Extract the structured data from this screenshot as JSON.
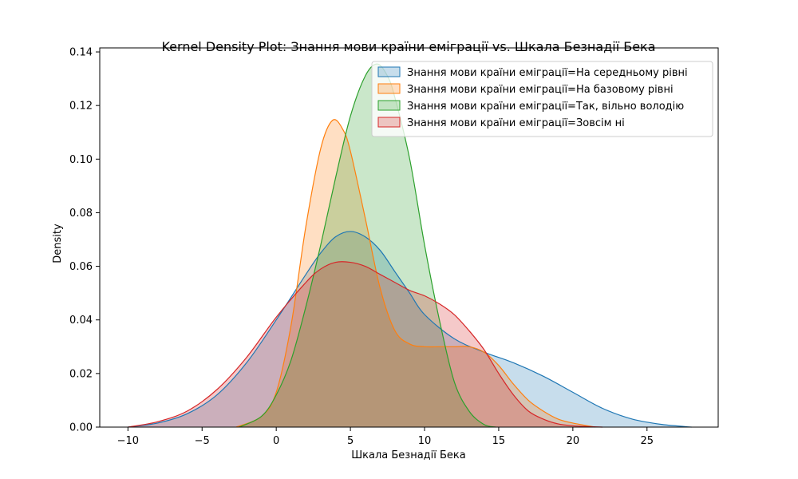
{
  "chart_data": {
    "type": "area",
    "title": "Kernel Density Plot: Знання мови країни еміграції vs. Шкала Безнадії Бека",
    "xlabel": "Шкала Безнадії Бека",
    "ylabel": "Density",
    "xlim": [
      -11.9,
      29.8
    ],
    "ylim": [
      0,
      0.1415
    ],
    "xticks": [
      -10,
      -5,
      0,
      5,
      10,
      15,
      20,
      25
    ],
    "xtick_labels": [
      "−10",
      "−5",
      "0",
      "5",
      "10",
      "15",
      "20",
      "25"
    ],
    "yticks": [
      0.0,
      0.02,
      0.04,
      0.06,
      0.08,
      0.1,
      0.12,
      0.14
    ],
    "ytick_labels": [
      "0.00",
      "0.02",
      "0.04",
      "0.06",
      "0.08",
      "0.10",
      "0.12",
      "0.14"
    ],
    "grid": false,
    "legend_position": "top-right",
    "series": [
      {
        "name": "Знання мови країни еміграції=На середньому рівні",
        "color": "#1f77b4",
        "x": [
          -10,
          -8,
          -6,
          -4,
          -2,
          0,
          2,
          3,
          4,
          5,
          6,
          7,
          8,
          9,
          10,
          12,
          14,
          16,
          18,
          20,
          22,
          24,
          26,
          28
        ],
        "y": [
          0.0,
          0.0015,
          0.005,
          0.012,
          0.024,
          0.04,
          0.057,
          0.065,
          0.071,
          0.073,
          0.071,
          0.066,
          0.058,
          0.05,
          0.042,
          0.033,
          0.028,
          0.024,
          0.019,
          0.013,
          0.007,
          0.003,
          0.001,
          0.0
        ]
      },
      {
        "name": "Знання мови країни еміграції=На базовому рівні",
        "color": "#ff7f0e",
        "x": [
          -2.7,
          -1,
          0,
          1,
          2,
          3,
          3.8,
          4.5,
          5,
          6,
          7,
          8,
          9,
          10,
          11,
          12,
          13,
          14,
          15,
          16,
          17,
          18,
          19,
          20,
          21.5
        ],
        "y": [
          0.0,
          0.004,
          0.013,
          0.038,
          0.075,
          0.104,
          0.1145,
          0.111,
          0.103,
          0.078,
          0.052,
          0.036,
          0.031,
          0.03,
          0.03,
          0.03,
          0.03,
          0.028,
          0.023,
          0.016,
          0.01,
          0.006,
          0.003,
          0.0015,
          0.0
        ]
      },
      {
        "name": "Знання мови країни еміграції=Так, вільно володію",
        "color": "#2ca02c",
        "x": [
          -2.5,
          -1,
          0,
          1,
          2,
          3,
          4,
          5,
          6,
          6.8,
          7.5,
          8,
          9,
          10,
          11,
          12,
          13,
          14,
          14.8
        ],
        "y": [
          0.0,
          0.004,
          0.012,
          0.025,
          0.045,
          0.068,
          0.093,
          0.116,
          0.131,
          0.1355,
          0.131,
          0.123,
          0.1,
          0.068,
          0.04,
          0.017,
          0.006,
          0.001,
          0.0
        ]
      },
      {
        "name": "Знання мови країни еміграції=Зовсім ні",
        "color": "#d62728",
        "x": [
          -10,
          -8,
          -6,
          -4,
          -2,
          0,
          2,
          3,
          4,
          5,
          6,
          7,
          8,
          9,
          10,
          11,
          12,
          13,
          14,
          15,
          16,
          17,
          18,
          19,
          20,
          21,
          22
        ],
        "y": [
          0.0,
          0.002,
          0.006,
          0.014,
          0.026,
          0.041,
          0.054,
          0.059,
          0.0615,
          0.0615,
          0.06,
          0.057,
          0.054,
          0.051,
          0.049,
          0.046,
          0.042,
          0.036,
          0.029,
          0.02,
          0.012,
          0.006,
          0.003,
          0.0012,
          0.0005,
          0.0002,
          0.0
        ]
      }
    ]
  }
}
